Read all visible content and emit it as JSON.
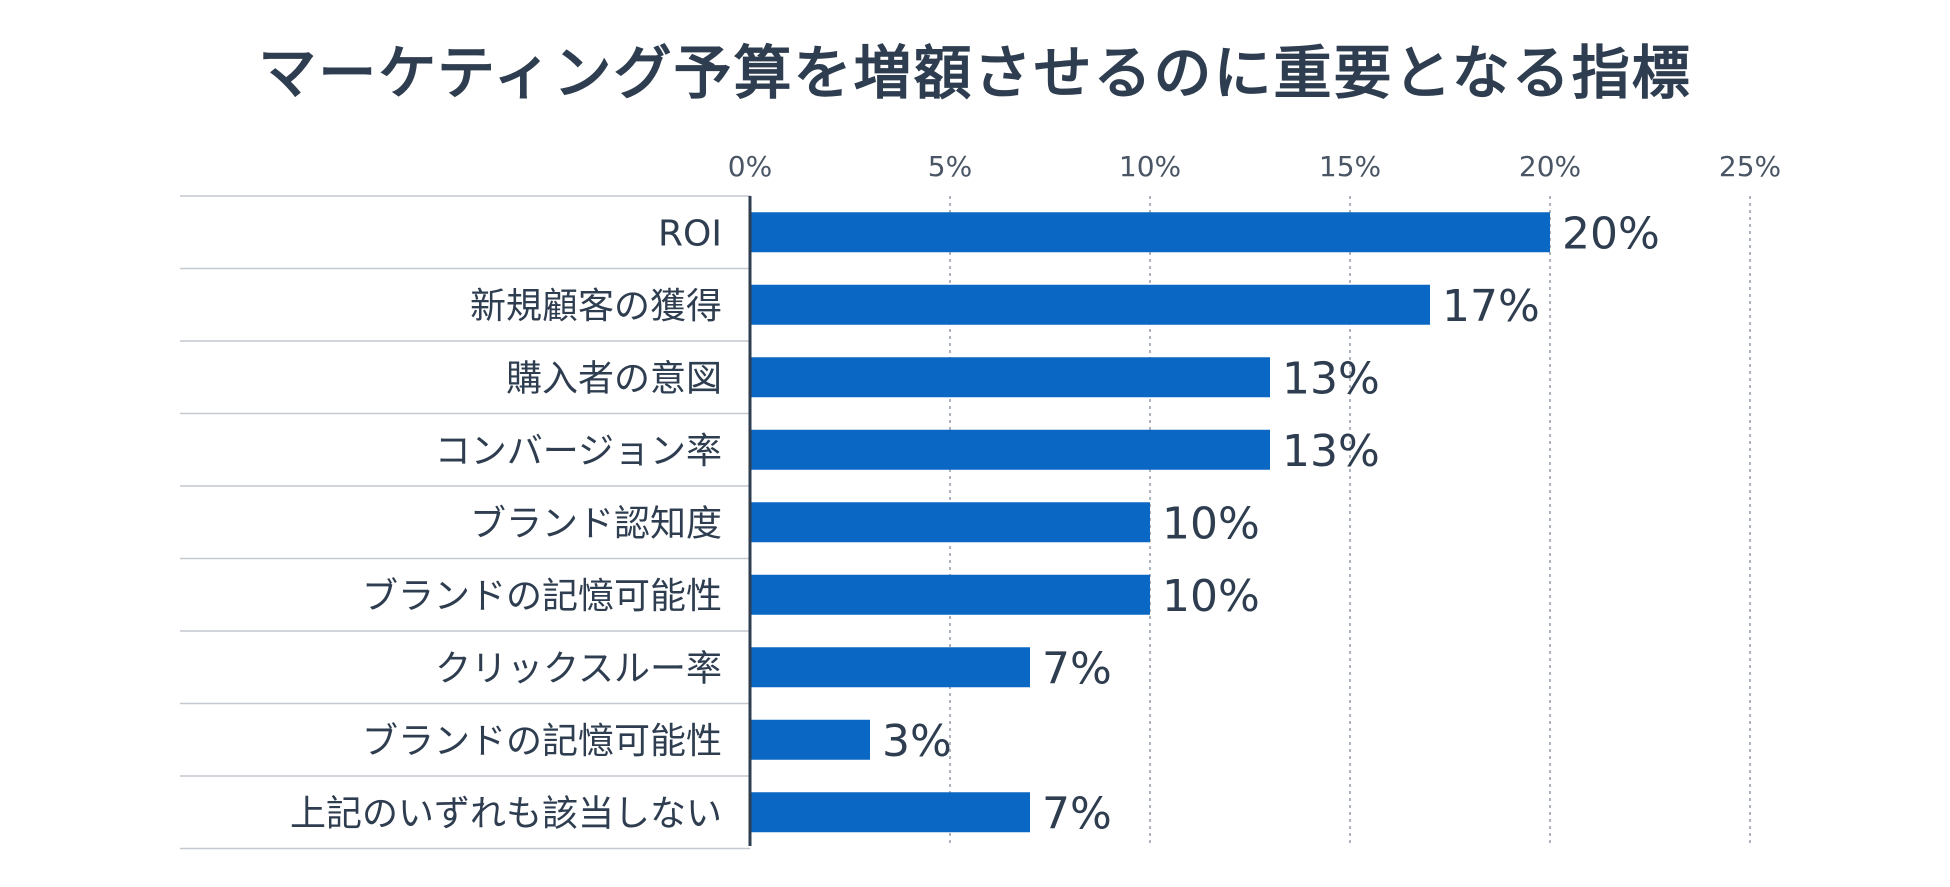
{
  "chart_data": {
    "type": "bar",
    "orientation": "horizontal",
    "title": "マーケティング予算を増額させるのに重要となる指標",
    "categories": [
      "ROI",
      "新規顧客の獲得",
      "購入者の意図",
      "コンバージョン率",
      "ブランド認知度",
      "ブランドの記憶可能性",
      "クリックスルー率",
      "ブランドの記憶可能性",
      "上記のいずれも該当しない"
    ],
    "values": [
      20,
      17,
      13,
      13,
      10,
      10,
      7,
      3,
      7
    ],
    "value_labels": [
      "20%",
      "17%",
      "13%",
      "13%",
      "10%",
      "10%",
      "7%",
      "3%",
      "7%"
    ],
    "xlim": [
      0,
      25
    ],
    "xticks": [
      0,
      5,
      10,
      15,
      20,
      25
    ],
    "xtick_labels": [
      "0%",
      "5%",
      "10%",
      "15%",
      "20%",
      "25%"
    ],
    "xlabel": "",
    "ylabel": "",
    "grid": "vertical dashed",
    "legend": "none",
    "bar_color": "#0b67c4",
    "text_color": "#2e3d4f"
  }
}
